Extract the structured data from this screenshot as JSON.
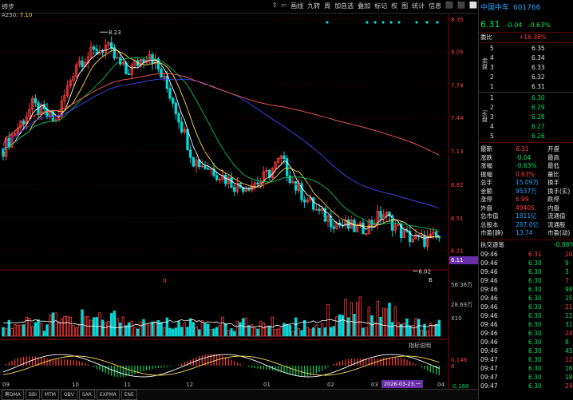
{
  "header": {
    "title_fragment": "缔步",
    "ma_label": "A250: ",
    "ma_value": "7.10",
    "toolbar": [
      "⇧",
      "⇦",
      "画线",
      "九转",
      "周",
      "加自选",
      "叠加",
      "标记",
      "权",
      "图",
      "统计",
      "信息"
    ],
    "toolbar_glyphs": [
      "⬛",
      "⬛",
      "⬜"
    ]
  },
  "price_axis": [
    "8.35",
    "8.05",
    "7.74",
    "7.44",
    "7.13",
    "6.82",
    "6.51",
    "6.21",
    "6.11"
  ],
  "price_annotations": {
    "high": "8.23",
    "low": "6.02"
  },
  "current_price_box": "6.11",
  "volume_axis": [
    "56.36万",
    "28.69万",
    "X10"
  ],
  "indicator_title": "指标说明",
  "macd_axis": [
    "0.146",
    "0",
    "-0.168"
  ],
  "x_axis": [
    "09",
    "10",
    "11",
    "12",
    "01",
    "02",
    "03",
    "04"
  ],
  "x_axis_highlight": "2026-03-23,一",
  "x_marker": "q",
  "x_marker2": "B",
  "bottom_tabs": [
    "筹DMA",
    "BBI",
    "MTM",
    "OBV",
    "SAR",
    "EXPMA",
    "ENE"
  ],
  "quote": {
    "name": "中国中车",
    "code": "601766",
    "price": "6.31",
    "change": "-0.04",
    "change_pct": "-0.63%",
    "wei_bi_label": "委比",
    "wei_bi_value": "+16.38%",
    "sell_label": "卖盘",
    "buy_label": "买盘",
    "asks": [
      {
        "level": "5",
        "price": "6.35"
      },
      {
        "level": "4",
        "price": "6.34"
      },
      {
        "level": "3",
        "price": "6.33"
      },
      {
        "level": "2",
        "price": "6.32"
      },
      {
        "level": "1",
        "price": "6.31"
      }
    ],
    "bids": [
      {
        "level": "1",
        "price": "6.30"
      },
      {
        "level": "2",
        "price": "6.29"
      },
      {
        "level": "3",
        "price": "6.28"
      },
      {
        "level": "4",
        "price": "6.27"
      },
      {
        "level": "5",
        "price": "6.26"
      }
    ],
    "stats": [
      {
        "l": "最新",
        "v": "6.31",
        "l2": "开盘"
      },
      {
        "l": "涨跌",
        "v": "-0.04",
        "l2": "最高"
      },
      {
        "l": "涨幅",
        "v": "-0.63%",
        "l2": "最低"
      },
      {
        "l": "振幅",
        "v": "0.63%",
        "l2": "量比"
      },
      {
        "l": "总手",
        "v": "15.09万",
        "l2": "换手"
      },
      {
        "l": "金额",
        "v": "9537万",
        "l2": "换手(实)"
      },
      {
        "l": "涨停",
        "v": "6.99",
        "l2": "跌停"
      },
      {
        "l": "外盘",
        "v": "49405",
        "l2": "内盘"
      },
      {
        "l": "总市值",
        "v": "1811亿",
        "l2": "流通值"
      },
      {
        "l": "总股本",
        "v": "287.0亿",
        "l2": "流通股"
      },
      {
        "l": "市盈(静)",
        "v": "13.74",
        "l2": "市盈(动)"
      }
    ],
    "ticks_header": "执交逐笔",
    "ticks_header_pct": "-0.88%",
    "ticks": [
      {
        "t": "09:46",
        "p": "6.31",
        "v": "10"
      },
      {
        "t": "09:46",
        "p": "6.30",
        "v": "9"
      },
      {
        "t": "09:46",
        "p": "6.30",
        "v": "3"
      },
      {
        "t": "09:46",
        "p": "6.30",
        "v": "7"
      },
      {
        "t": "09:46",
        "p": "6.30",
        "v": "98"
      },
      {
        "t": "09:46",
        "p": "6.30",
        "v": "15"
      },
      {
        "t": "09:46",
        "p": "6.30",
        "v": "21"
      },
      {
        "t": "09:46",
        "p": "6.30",
        "v": "12"
      },
      {
        "t": "09:46",
        "p": "6.30",
        "v": "31"
      },
      {
        "t": "09:46",
        "p": "6.30",
        "v": "24"
      },
      {
        "t": "09:46",
        "p": "6.30",
        "v": "8"
      },
      {
        "t": "09:46",
        "p": "6.30",
        "v": "45"
      },
      {
        "t": "09:47",
        "p": "6.30",
        "v": "12"
      },
      {
        "t": "09:47",
        "p": "6.30",
        "v": "160"
      },
      {
        "t": "09:47",
        "p": "6.30",
        "v": "18"
      },
      {
        "t": "09:47",
        "p": "6.30",
        "v": "24"
      }
    ]
  },
  "colors": {
    "up": "#ff3b3b",
    "down": "#00d8d8",
    "bg": "#000000",
    "ma5": "#ffffff",
    "ma10": "#ffd84a",
    "ma20": "#ff55ff",
    "ma60": "#4444ff",
    "ma120": "#ff5a5a"
  }
}
